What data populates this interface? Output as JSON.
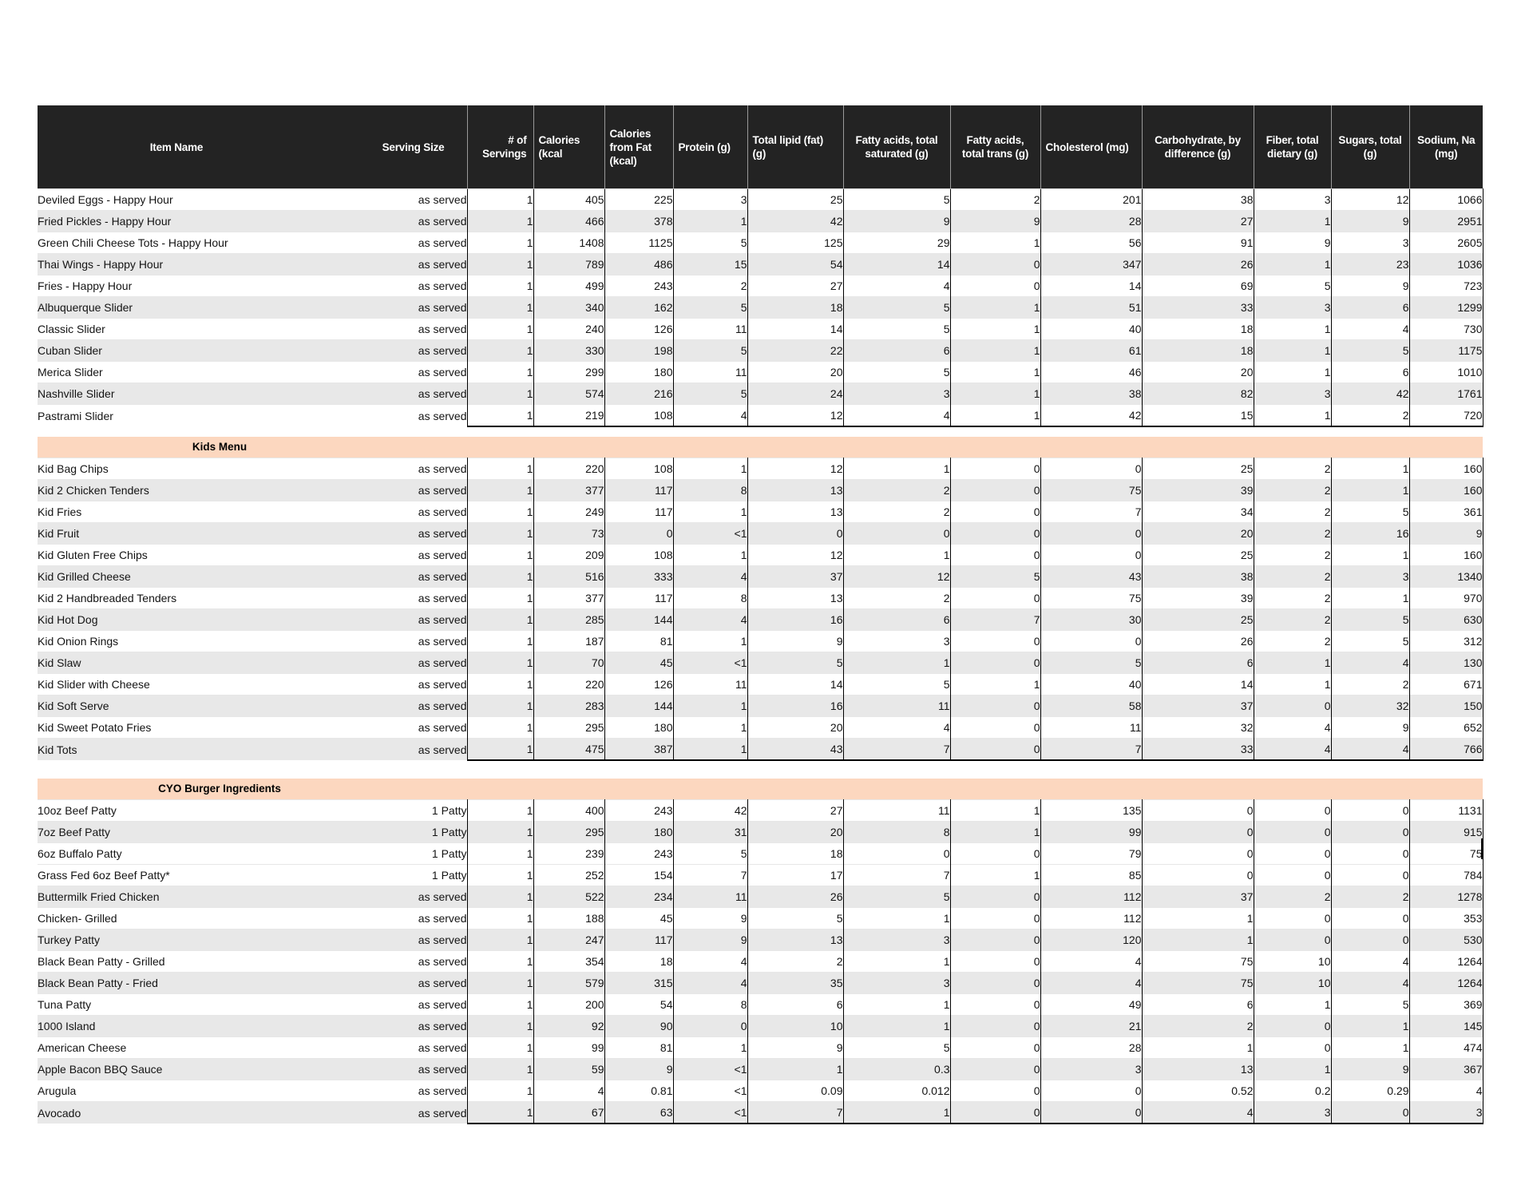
{
  "document_title": "Nutrition Information Table",
  "colors": {
    "header_bg": "#232323",
    "header_text": "#ffffff",
    "row_alt": "#e8e8e8",
    "section_band": "#fcd7bf",
    "gridline": "#000000"
  },
  "table": {
    "columns": [
      "Item Name",
      "Serving Size",
      "# of Servings",
      "Calories (kcal",
      "Calories from Fat (kcal)",
      "Protein (g)",
      "Total lipid (fat) (g)",
      "Fatty acids, total saturated (g)",
      "Fatty acids, total trans (g)",
      "Cholesterol (mg)",
      "Carbohydrate, by difference (g)",
      "Fiber, total dietary (g)",
      "Sugars, total (g)",
      "Sodium, Na (mg)"
    ],
    "sections": [
      {
        "title": "",
        "rows": [
          {
            "shaded": false,
            "cells": [
              "Deviled Eggs - Happy Hour",
              "as served",
              "1",
              "405",
              "225",
              "3",
              "25",
              "5",
              "2",
              "201",
              "38",
              "3",
              "12",
              "1066"
            ]
          },
          {
            "shaded": true,
            "cells": [
              "Fried Pickles - Happy Hour",
              "as served",
              "1",
              "466",
              "378",
              "1",
              "42",
              "9",
              "9",
              "28",
              "27",
              "1",
              "9",
              "2951"
            ]
          },
          {
            "shaded": false,
            "cells": [
              "Green Chili Cheese Tots - Happy Hour",
              "as served",
              "1",
              "1408",
              "1125",
              "5",
              "125",
              "29",
              "1",
              "56",
              "91",
              "9",
              "3",
              "2605"
            ]
          },
          {
            "shaded": true,
            "cells": [
              "Thai Wings - Happy Hour",
              "as served",
              "1",
              "789",
              "486",
              "15",
              "54",
              "14",
              "0",
              "347",
              "26",
              "1",
              "23",
              "1036"
            ]
          },
          {
            "shaded": false,
            "cells": [
              "Fries - Happy Hour",
              "as served",
              "1",
              "499",
              "243",
              "2",
              "27",
              "4",
              "0",
              "14",
              "69",
              "5",
              "9",
              "723"
            ]
          },
          {
            "shaded": true,
            "cells": [
              "Albuquerque Slider",
              "as served",
              "1",
              "340",
              "162",
              "5",
              "18",
              "5",
              "1",
              "51",
              "33",
              "3",
              "6",
              "1299"
            ]
          },
          {
            "shaded": false,
            "cells": [
              "Classic Slider",
              "as served",
              "1",
              "240",
              "126",
              "11",
              "14",
              "5",
              "1",
              "40",
              "18",
              "1",
              "4",
              "730"
            ]
          },
          {
            "shaded": true,
            "cells": [
              "Cuban Slider",
              "as served",
              "1",
              "330",
              "198",
              "5",
              "22",
              "6",
              "1",
              "61",
              "18",
              "1",
              "5",
              "1175"
            ]
          },
          {
            "shaded": false,
            "cells": [
              "Merica Slider",
              "as served",
              "1",
              "299",
              "180",
              "11",
              "20",
              "5",
              "1",
              "46",
              "20",
              "1",
              "6",
              "1010"
            ]
          },
          {
            "shaded": true,
            "cells": [
              "Nashville Slider",
              "as served",
              "1",
              "574",
              "216",
              "5",
              "24",
              "3",
              "1",
              "38",
              "82",
              "3",
              "42",
              "1761"
            ]
          },
          {
            "shaded": false,
            "cells": [
              "Pastrami Slider",
              "as served",
              "1",
              "219",
              "108",
              "4",
              "12",
              "4",
              "1",
              "42",
              "15",
              "1",
              "2",
              "720"
            ]
          }
        ]
      },
      {
        "title": "Kids Menu",
        "rows": [
          {
            "shaded": false,
            "cells": [
              "Kid Bag Chips",
              "as served",
              "1",
              "220",
              "108",
              "1",
              "12",
              "1",
              "0",
              "0",
              "25",
              "2",
              "1",
              "160"
            ]
          },
          {
            "shaded": true,
            "cells": [
              "Kid 2 Chicken Tenders",
              "as served",
              "1",
              "377",
              "117",
              "8",
              "13",
              "2",
              "0",
              "75",
              "39",
              "2",
              "1",
              "160"
            ]
          },
          {
            "shaded": false,
            "cells": [
              "Kid Fries",
              "as served",
              "1",
              "249",
              "117",
              "1",
              "13",
              "2",
              "0",
              "7",
              "34",
              "2",
              "5",
              "361"
            ]
          },
          {
            "shaded": true,
            "cells": [
              "Kid Fruit",
              "as served",
              "1",
              "73",
              "0",
              "<1",
              "0",
              "0",
              "0",
              "0",
              "20",
              "2",
              "16",
              "9"
            ]
          },
          {
            "shaded": false,
            "cells": [
              "Kid Gluten Free Chips",
              "as served",
              "1",
              "209",
              "108",
              "1",
              "12",
              "1",
              "0",
              "0",
              "25",
              "2",
              "1",
              "160"
            ]
          },
          {
            "shaded": true,
            "cells": [
              "Kid Grilled Cheese",
              "as served",
              "1",
              "516",
              "333",
              "4",
              "37",
              "12",
              "5",
              "43",
              "38",
              "2",
              "3",
              "1340"
            ]
          },
          {
            "shaded": false,
            "cells": [
              "Kid 2 Handbreaded Tenders",
              "as served",
              "1",
              "377",
              "117",
              "8",
              "13",
              "2",
              "0",
              "75",
              "39",
              "2",
              "1",
              "970"
            ]
          },
          {
            "shaded": true,
            "cells": [
              "Kid Hot Dog",
              "as served",
              "1",
              "285",
              "144",
              "4",
              "16",
              "6",
              "7",
              "30",
              "25",
              "2",
              "5",
              "630"
            ]
          },
          {
            "shaded": false,
            "cells": [
              "Kid Onion Rings",
              "as served",
              "1",
              "187",
              "81",
              "1",
              "9",
              "3",
              "0",
              "0",
              "26",
              "2",
              "5",
              "312"
            ]
          },
          {
            "shaded": true,
            "cells": [
              "Kid Slaw",
              "as served",
              "1",
              "70",
              "45",
              "<1",
              "5",
              "1",
              "0",
              "5",
              "6",
              "1",
              "4",
              "130"
            ]
          },
          {
            "shaded": false,
            "cells": [
              "Kid Slider with Cheese",
              "as served",
              "1",
              "220",
              "126",
              "11",
              "14",
              "5",
              "1",
              "40",
              "14",
              "1",
              "2",
              "671"
            ]
          },
          {
            "shaded": true,
            "cells": [
              "Kid Soft Serve",
              "as served",
              "1",
              "283",
              "144",
              "1",
              "16",
              "11",
              "0",
              "58",
              "37",
              "0",
              "32",
              "150"
            ]
          },
          {
            "shaded": false,
            "cells": [
              "Kid Sweet Potato Fries",
              "as served",
              "1",
              "295",
              "180",
              "1",
              "20",
              "4",
              "0",
              "11",
              "32",
              "4",
              "9",
              "652"
            ]
          },
          {
            "shaded": true,
            "cells": [
              "Kid Tots",
              "as served",
              "1",
              "475",
              "387",
              "1",
              "43",
              "7",
              "0",
              "7",
              "33",
              "4",
              "4",
              "766"
            ]
          }
        ]
      },
      {
        "title": "CYO Burger Ingredients",
        "rows": [
          {
            "shaded": false,
            "cells": [
              "10oz Beef Patty",
              "1 Patty",
              "1",
              "400",
              "243",
              "42",
              "27",
              "11",
              "1",
              "135",
              "0",
              "0",
              "0",
              "1131"
            ]
          },
          {
            "shaded": true,
            "cells": [
              "7oz Beef Patty",
              "1 Patty",
              "1",
              "295",
              "180",
              "31",
              "20",
              "8",
              "1",
              "99",
              "0",
              "0",
              "0",
              "915"
            ]
          },
          {
            "shaded": false,
            "cells": [
              "6oz Buffalo Patty",
              "1 Patty",
              "1",
              "239",
              "243",
              "5",
              "18",
              "0",
              "0",
              "79",
              "0",
              "0",
              "0",
              "75"
            ]
          },
          {
            "shaded": false,
            "caret": true,
            "cells": [
              "Grass Fed 6oz Beef Patty*",
              "1 Patty",
              "1",
              "252",
              "154",
              "7",
              "17",
              "7",
              "1",
              "85",
              "0",
              "0",
              "0",
              "784"
            ]
          },
          {
            "shaded": true,
            "cells": [
              "Buttermilk Fried Chicken",
              "as served",
              "1",
              "522",
              "234",
              "11",
              "26",
              "5",
              "0",
              "112",
              "37",
              "2",
              "2",
              "1278"
            ]
          },
          {
            "shaded": false,
            "cells": [
              "Chicken- Grilled",
              "as served",
              "1",
              "188",
              "45",
              "9",
              "5",
              "1",
              "0",
              "112",
              "1",
              "0",
              "0",
              "353"
            ]
          },
          {
            "shaded": true,
            "cells": [
              "Turkey Patty",
              "as served",
              "1",
              "247",
              "117",
              "9",
              "13",
              "3",
              "0",
              "120",
              "1",
              "0",
              "0",
              "530"
            ]
          },
          {
            "shaded": false,
            "cells": [
              "Black Bean Patty - Grilled",
              "as served",
              "1",
              "354",
              "18",
              "4",
              "2",
              "1",
              "0",
              "4",
              "75",
              "10",
              "4",
              "1264"
            ]
          },
          {
            "shaded": true,
            "cells": [
              "Black Bean Patty - Fried",
              "as served",
              "1",
              "579",
              "315",
              "4",
              "35",
              "3",
              "0",
              "4",
              "75",
              "10",
              "4",
              "1264"
            ]
          },
          {
            "shaded": false,
            "cells": [
              "Tuna Patty",
              "as served",
              "1",
              "200",
              "54",
              "8",
              "6",
              "1",
              "0",
              "49",
              "6",
              "1",
              "5",
              "369"
            ]
          },
          {
            "shaded": true,
            "cells": [
              "1000 Island",
              "as served",
              "1",
              "92",
              "90",
              "0",
              "10",
              "1",
              "0",
              "21",
              "2",
              "0",
              "1",
              "145"
            ]
          },
          {
            "shaded": false,
            "cells": [
              "American Cheese",
              "as served",
              "1",
              "99",
              "81",
              "1",
              "9",
              "5",
              "0",
              "28",
              "1",
              "0",
              "1",
              "474"
            ]
          },
          {
            "shaded": true,
            "cells": [
              "Apple Bacon BBQ Sauce",
              "as served",
              "1",
              "59",
              "9",
              "<1",
              "1",
              "0.3",
              "0",
              "3",
              "13",
              "1",
              "9",
              "367"
            ]
          },
          {
            "shaded": false,
            "cells": [
              "Arugula",
              "as served",
              "1",
              "4",
              "0.81",
              "<1",
              "0.09",
              "0.012",
              "0",
              "0",
              "0.52",
              "0.2",
              "0.29",
              "4"
            ]
          },
          {
            "shaded": true,
            "cells": [
              "Avocado",
              "as served",
              "1",
              "67",
              "63",
              "<1",
              "7",
              "1",
              "0",
              "0",
              "4",
              "3",
              "0",
              "3"
            ]
          }
        ]
      }
    ]
  }
}
